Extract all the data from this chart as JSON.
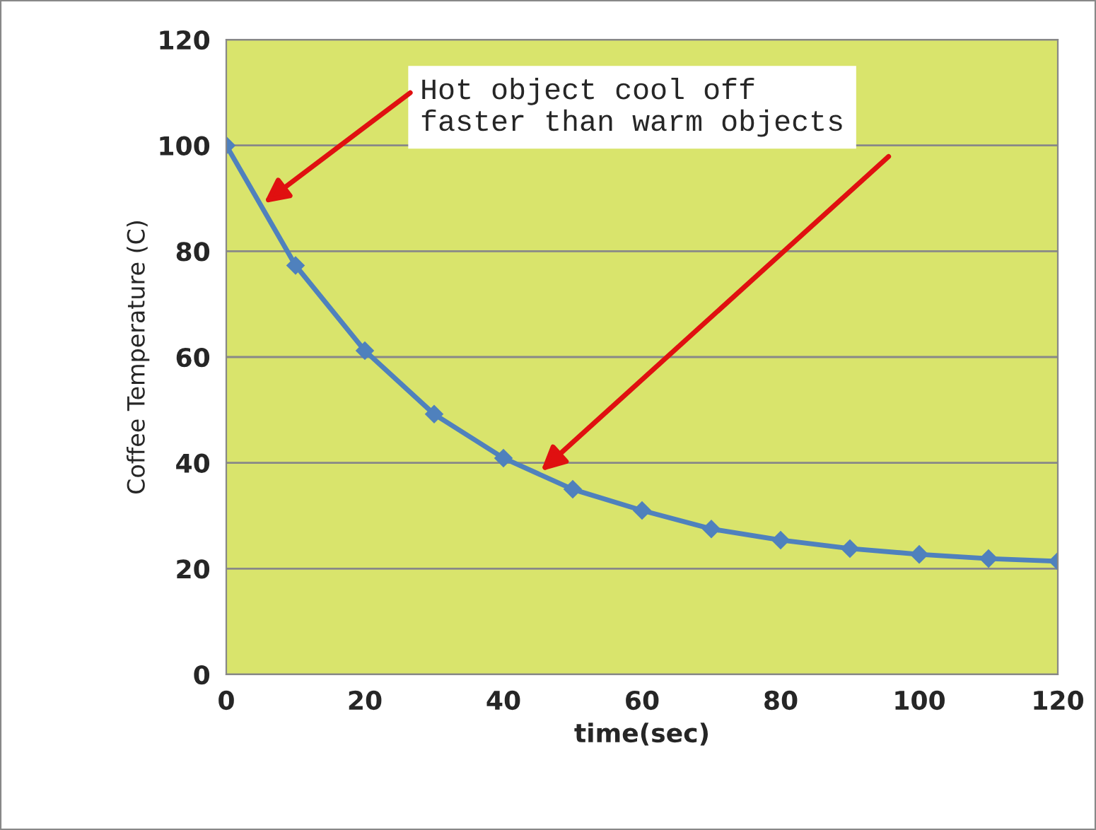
{
  "chart_data": {
    "type": "line",
    "xlabel": "time(sec)",
    "ylabel": "Coffee Temperature (C)",
    "x": [
      0,
      10,
      20,
      30,
      40,
      50,
      60,
      70,
      80,
      90,
      100,
      110,
      120
    ],
    "series": [
      {
        "color": "#4f81bd",
        "values": [
          100,
          77.3,
          61.2,
          49.2,
          40.9,
          35.0,
          31.0,
          27.5,
          25.4,
          23.8,
          22.7,
          21.9,
          21.4
        ]
      }
    ],
    "xlim": [
      0,
      120
    ],
    "xticks": [
      0,
      20,
      40,
      60,
      80,
      100,
      120
    ],
    "ylim": [
      0,
      120
    ],
    "yticks": [
      0,
      20,
      40,
      60,
      80,
      100,
      120
    ],
    "grid": "y",
    "marker": "diamond",
    "line_style": "solid",
    "annotations": [
      "Hot object cool off\nfaster than warm objects"
    ]
  }
}
